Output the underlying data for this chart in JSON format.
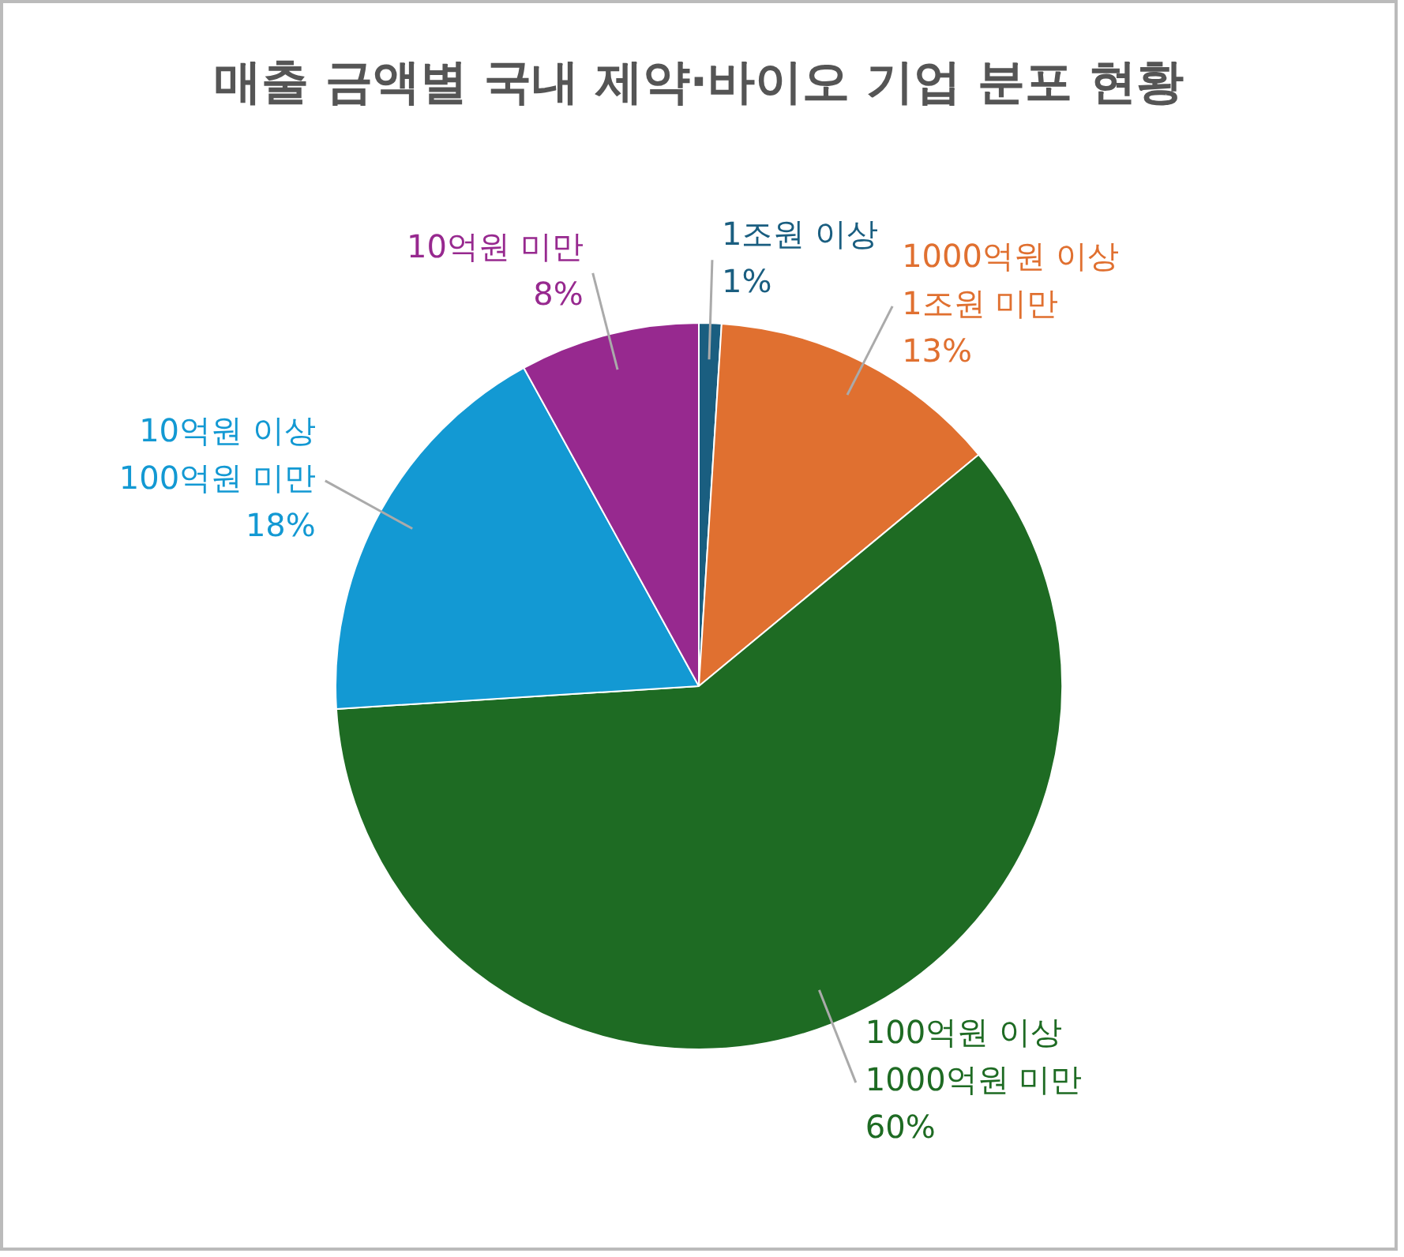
{
  "chart_data": {
    "type": "pie",
    "title": "매출 금액별 국내 제약·바이오 기업 분포 현황",
    "categories": [
      "1조원 이상",
      "1000억원 이상 1조원 미만",
      "100억원 이상 1000억원 미만",
      "10억원 이상 100억원 미만",
      "10억원 미만"
    ],
    "values": [
      1,
      13,
      60,
      18,
      8
    ],
    "value_labels": [
      "1%",
      "13%",
      "60%",
      "18%",
      "8%"
    ],
    "colors": [
      "#1a5e80",
      "#e07030",
      "#1e6b23",
      "#1399d3",
      "#97298f"
    ],
    "legend": false
  }
}
